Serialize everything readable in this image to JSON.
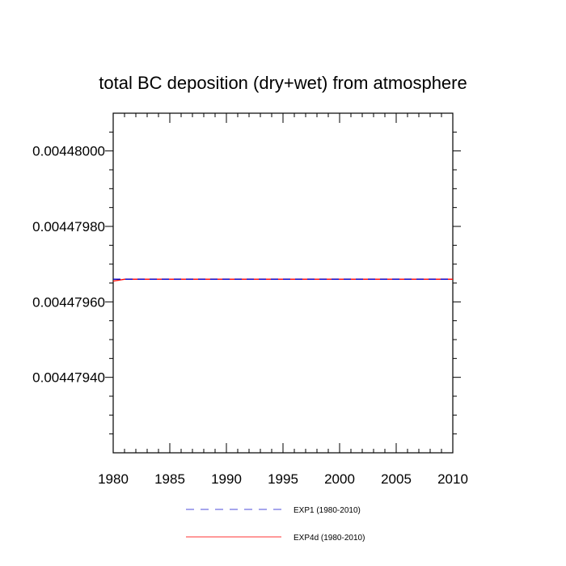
{
  "chart_data": {
    "type": "line",
    "title": "total BC deposition (dry+wet) from atmosphere",
    "xlabel": "",
    "ylabel": "",
    "xlim": [
      1980,
      2010
    ],
    "ylim": [
      0.0044792,
      0.0044801
    ],
    "x_ticks": [
      1980,
      1985,
      1990,
      1995,
      2000,
      2005,
      2010
    ],
    "y_ticks": [
      0.0044794,
      0.0044796,
      0.0044798,
      0.00448
    ],
    "x_tick_labels": [
      "1980",
      "1985",
      "1990",
      "1995",
      "2000",
      "2005",
      "2010"
    ],
    "y_tick_labels": [
      "0.00447940",
      "0.00447960",
      "0.00447980",
      "0.00448000"
    ],
    "grid": false,
    "legend_position": "bottom",
    "series": [
      {
        "name": "EXP1 (1980-2010)",
        "color": "#0000cc",
        "style": "dashed",
        "x": [
          1980,
          1981,
          1982,
          1985,
          1990,
          1995,
          2000,
          2005,
          2010
        ],
        "values": [
          0.00447966,
          0.00447966,
          0.00447966,
          0.00447966,
          0.00447966,
          0.00447966,
          0.00447966,
          0.00447966,
          0.00447966
        ]
      },
      {
        "name": "EXP4d (1980-2010)",
        "color": "#ff0000",
        "style": "solid",
        "x": [
          1980,
          1981,
          1982,
          1985,
          1990,
          1995,
          2000,
          2005,
          2010
        ],
        "values": [
          0.004479655,
          0.00447966,
          0.00447966,
          0.00447966,
          0.00447966,
          0.00447966,
          0.00447966,
          0.00447966,
          0.00447966
        ]
      }
    ]
  }
}
